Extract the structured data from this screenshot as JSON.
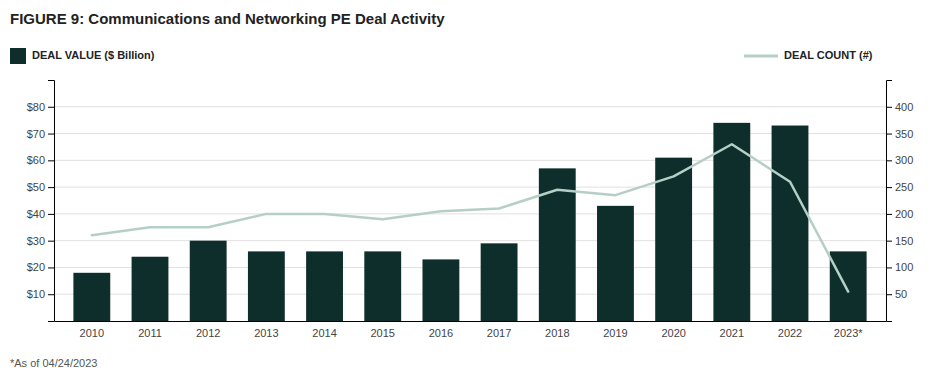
{
  "chart_data": {
    "type": "bar",
    "title": "FIGURE 9:  Communications and Networking PE Deal Activity",
    "categories": [
      "2010",
      "2011",
      "2012",
      "2013",
      "2014",
      "2015",
      "2016",
      "2017",
      "2018",
      "2019",
      "2020",
      "2021",
      "2022",
      "2023*"
    ],
    "series": [
      {
        "name": "DEAL VALUE ($ Billion)",
        "type": "bar",
        "color": "#0d2e2a",
        "values": [
          18,
          24,
          30,
          26,
          26,
          26,
          23,
          29,
          57,
          43,
          61,
          74,
          73,
          26
        ]
      },
      {
        "name": "DEAL COUNT (#)",
        "type": "line",
        "axis": "y2",
        "color": "#b5cfc7",
        "values": [
          160,
          175,
          175,
          200,
          200,
          190,
          205,
          210,
          245,
          235,
          270,
          330,
          260,
          55
        ]
      }
    ],
    "ylim": [
      0,
      90
    ],
    "yticks": [
      {
        "value": 10,
        "label": "$10"
      },
      {
        "value": 20,
        "label": "$20"
      },
      {
        "value": 30,
        "label": "$30"
      },
      {
        "value": 40,
        "label": "$40"
      },
      {
        "value": 50,
        "label": "$50"
      },
      {
        "value": 60,
        "label": "$60"
      },
      {
        "value": 70,
        "label": "$70"
      },
      {
        "value": 80,
        "label": "$80"
      }
    ],
    "y2lim": [
      0,
      450
    ],
    "y2ticks": [
      50,
      100,
      150,
      200,
      250,
      300,
      350,
      400
    ],
    "grid": true,
    "legend": "top",
    "annotations": [
      "*As of 04/24/2023"
    ]
  }
}
